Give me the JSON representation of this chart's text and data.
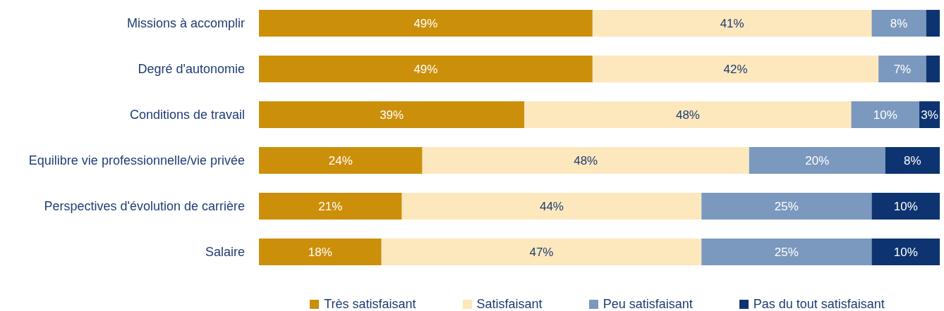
{
  "chart_data": {
    "type": "bar",
    "orientation": "horizontal",
    "stacked": true,
    "legend": "bottom",
    "tick_labels": "y",
    "xlim": [
      0,
      100
    ],
    "categories": [
      "Missions à accomplir",
      "Degré d'autonomie",
      "Conditions de travail",
      "Equilibre vie professionnelle/vie privée",
      "Perspectives d'évolution de carrière",
      "Salaire"
    ],
    "series": [
      {
        "name": "Très satisfaisant",
        "color": "#cc8f0a",
        "values": [
          49,
          49,
          39,
          24,
          21,
          18
        ],
        "value_labels": [
          "49%",
          "49%",
          "39%",
          "24%",
          "21%",
          "18%"
        ]
      },
      {
        "name": "Satisfaisant",
        "color": "#fde8bd",
        "values": [
          41,
          42,
          48,
          48,
          44,
          47
        ],
        "value_labels": [
          "41%",
          "42%",
          "48%",
          "48%",
          "44%",
          "47%"
        ]
      },
      {
        "name": "Peu satisfaisant",
        "color": "#7b98be",
        "values": [
          8,
          7,
          10,
          20,
          25,
          25
        ],
        "value_labels": [
          "8%",
          "7%",
          "10%",
          "20%",
          "25%",
          "25%"
        ]
      },
      {
        "name": "Pas du tout satisfaisant",
        "color": "#0d3470",
        "values": [
          2,
          2,
          3,
          8,
          10,
          10
        ],
        "value_labels": [
          null,
          null,
          "3%",
          "8%",
          "10%",
          "10%"
        ]
      }
    ]
  }
}
